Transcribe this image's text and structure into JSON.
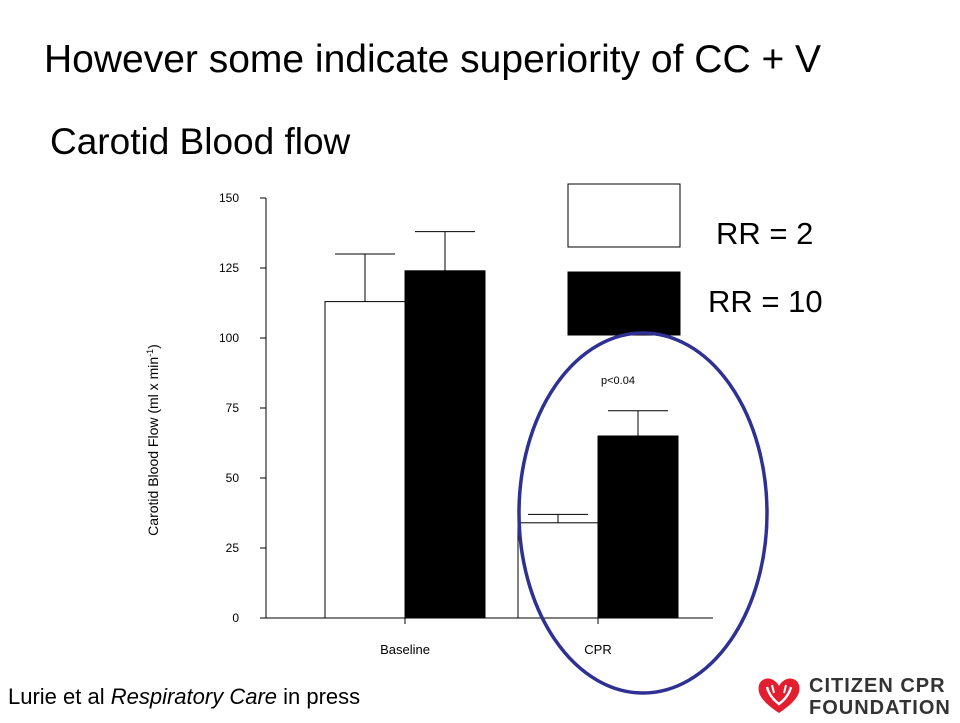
{
  "slide": {
    "title": "However some indicate superiority of CC + V",
    "subtitle": "Carotid Blood flow",
    "citation_authors": "Lurie et al ",
    "citation_journal": "Respiratory Care",
    "citation_status": " in press",
    "logo": {
      "line1": "CITIZEN CPR",
      "line2": "FOUNDATION",
      "icon": "heart-hands-icon",
      "color": "#e31e2f"
    },
    "annotation_color": "#2e3192"
  },
  "chart_data": {
    "type": "bar",
    "categories": [
      "Baseline",
      "CPR"
    ],
    "series": [
      {
        "name": "RR = 2",
        "values": [
          113,
          34
        ],
        "errors": [
          17,
          3
        ],
        "color": "#ffffff"
      },
      {
        "name": "RR = 10",
        "values": [
          124,
          65
        ],
        "errors": [
          14,
          9
        ],
        "color": "#000000"
      }
    ],
    "ylabel": "Carotid Blood Flow (ml x min",
    "ylabel_sup": "-1",
    "ylabel_close": ")",
    "ylim": [
      0,
      150
    ],
    "yticks": [
      0,
      25,
      50,
      75,
      100,
      125,
      150
    ],
    "annotations": [
      {
        "text": "p<0.04",
        "category": "CPR"
      }
    ],
    "legend_position": "top-right",
    "grid": false
  }
}
